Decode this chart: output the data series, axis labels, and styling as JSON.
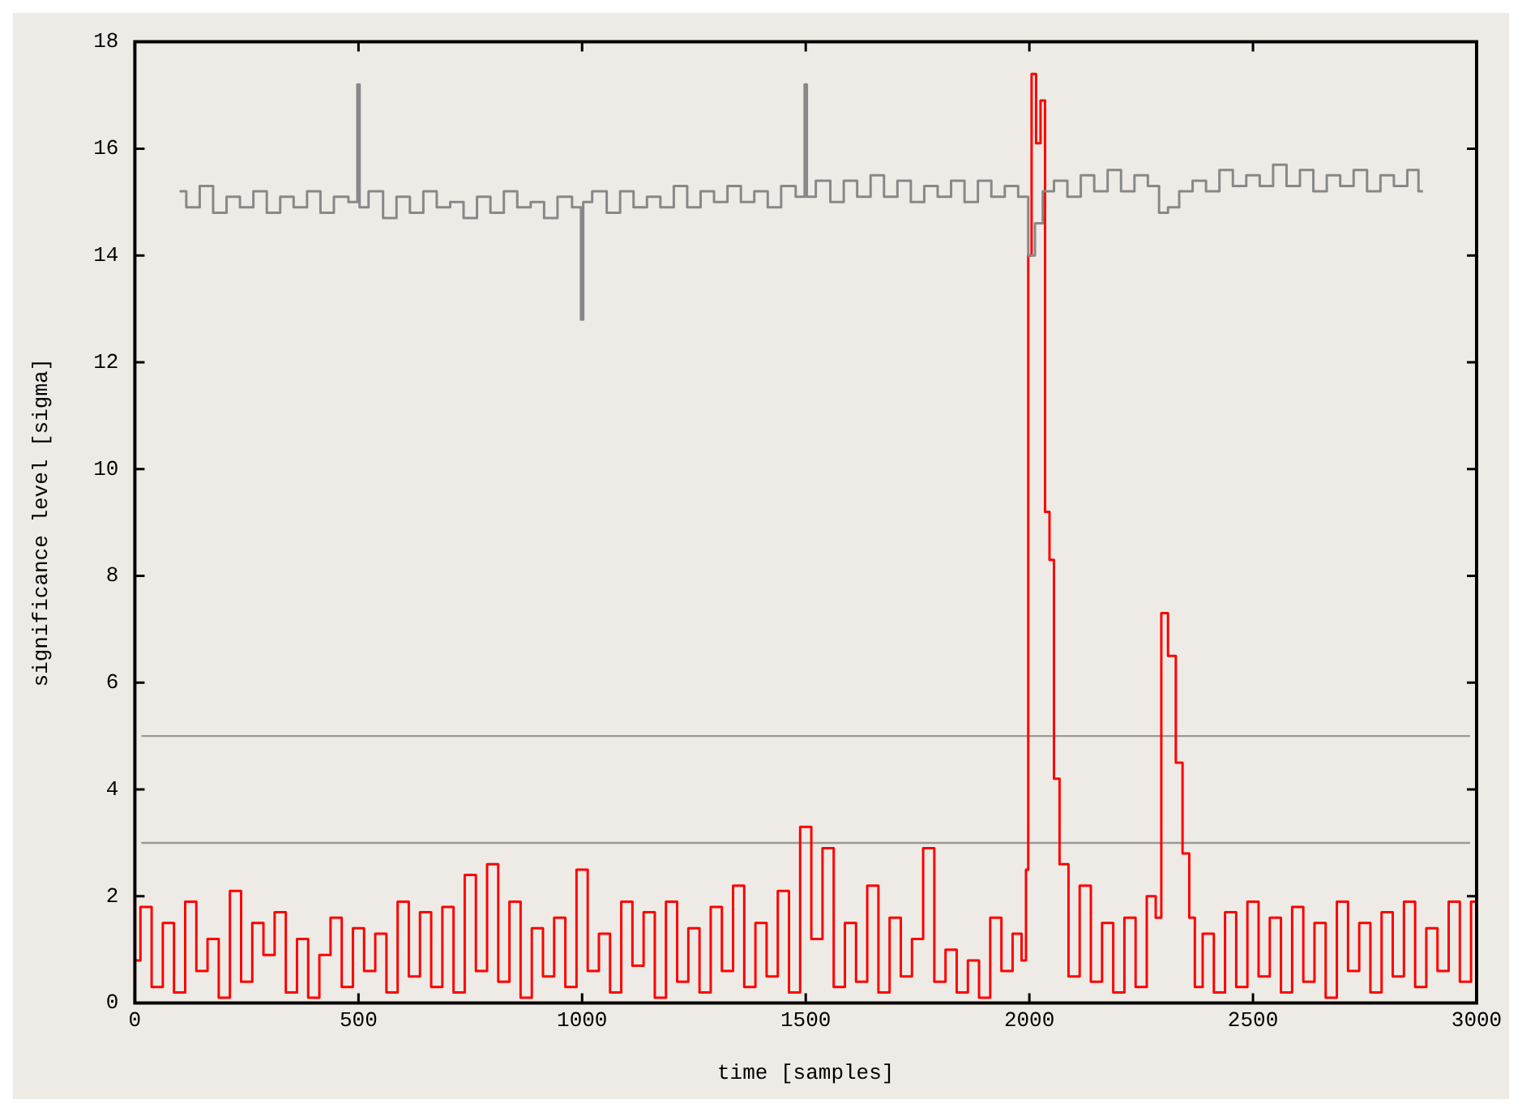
{
  "chart_data": {
    "type": "step",
    "xlabel": "time [samples]",
    "ylabel": "significance level [sigma]",
    "xlim": [
      0,
      3000
    ],
    "xticks": [
      0,
      500,
      1000,
      1500,
      2000,
      2500,
      3000
    ],
    "ylim": [
      0,
      18
    ],
    "yticks": [
      0,
      2,
      4,
      6,
      8,
      10,
      12,
      14,
      16,
      18
    ],
    "grid": false,
    "legend": false,
    "ref_lines": [
      {
        "axis": "y",
        "value": 5,
        "label": null,
        "color": "#999999"
      },
      {
        "axis": "y",
        "value": 3,
        "label": null,
        "color": "#999999"
      }
    ],
    "series": [
      {
        "color": "#888888",
        "x": [
          100,
          130,
          160,
          190,
          220,
          250,
          280,
          310,
          340,
          370,
          400,
          430,
          460,
          495,
          500,
          505,
          540,
          570,
          600,
          630,
          660,
          690,
          720,
          750,
          780,
          810,
          840,
          870,
          900,
          930,
          960,
          995,
          1000,
          1005,
          1040,
          1070,
          1100,
          1130,
          1160,
          1190,
          1220,
          1250,
          1280,
          1310,
          1340,
          1370,
          1400,
          1430,
          1460,
          1495,
          1500,
          1505,
          1540,
          1570,
          1600,
          1630,
          1660,
          1690,
          1720,
          1750,
          1780,
          1810,
          1840,
          1870,
          1900,
          1930,
          1960,
          1990,
          2005,
          2020,
          2040,
          2070,
          2100,
          2130,
          2160,
          2190,
          2220,
          2250,
          2280,
          2300,
          2320,
          2350,
          2380,
          2410,
          2440,
          2470,
          2500,
          2530,
          2560,
          2590,
          2620,
          2650,
          2680,
          2710,
          2740,
          2770,
          2800,
          2830,
          2860,
          2880
        ],
        "values": [
          15.2,
          14.9,
          15.3,
          14.8,
          15.1,
          14.9,
          15.2,
          14.8,
          15.1,
          14.9,
          15.2,
          14.8,
          15.1,
          15.0,
          17.2,
          14.9,
          15.2,
          14.7,
          15.1,
          14.8,
          15.2,
          14.9,
          15.0,
          14.7,
          15.1,
          14.8,
          15.2,
          14.9,
          15.0,
          14.7,
          15.1,
          14.9,
          12.8,
          15.0,
          15.2,
          14.8,
          15.2,
          14.9,
          15.1,
          14.9,
          15.3,
          14.9,
          15.2,
          15.0,
          15.3,
          15.0,
          15.2,
          14.9,
          15.3,
          15.1,
          17.2,
          15.1,
          15.4,
          15.0,
          15.4,
          15.1,
          15.5,
          15.1,
          15.4,
          15.0,
          15.3,
          15.1,
          15.4,
          15.0,
          15.4,
          15.1,
          15.3,
          15.1,
          14.0,
          14.6,
          15.2,
          15.4,
          15.1,
          15.5,
          15.2,
          15.6,
          15.2,
          15.5,
          15.3,
          14.8,
          14.9,
          15.2,
          15.4,
          15.2,
          15.6,
          15.3,
          15.5,
          15.3,
          15.7,
          15.3,
          15.6,
          15.2,
          15.5,
          15.3,
          15.6,
          15.2,
          15.5,
          15.3,
          15.6,
          15.2
        ]
      },
      {
        "color": "#ff0000",
        "x": [
          0,
          25,
          50,
          75,
          100,
          125,
          150,
          175,
          200,
          225,
          250,
          275,
          300,
          325,
          350,
          375,
          400,
          425,
          450,
          475,
          500,
          525,
          550,
          575,
          600,
          625,
          650,
          675,
          700,
          725,
          750,
          775,
          800,
          825,
          850,
          875,
          900,
          925,
          950,
          975,
          1000,
          1025,
          1050,
          1075,
          1100,
          1125,
          1150,
          1175,
          1200,
          1225,
          1250,
          1275,
          1300,
          1325,
          1350,
          1375,
          1400,
          1425,
          1450,
          1475,
          1500,
          1525,
          1550,
          1575,
          1600,
          1625,
          1650,
          1675,
          1700,
          1725,
          1750,
          1775,
          1800,
          1825,
          1850,
          1875,
          1900,
          1925,
          1950,
          1975,
          1990,
          1995,
          2000,
          2010,
          2020,
          2030,
          2040,
          2050,
          2060,
          2075,
          2100,
          2125,
          2150,
          2175,
          2200,
          2225,
          2250,
          2275,
          2290,
          2300,
          2320,
          2335,
          2350,
          2365,
          2375,
          2400,
          2425,
          2450,
          2475,
          2500,
          2525,
          2550,
          2575,
          2600,
          2625,
          2650,
          2675,
          2700,
          2725,
          2750,
          2775,
          2800,
          2825,
          2850,
          2875,
          2900,
          2925,
          2950,
          2975,
          3000
        ],
        "values": [
          0.8,
          1.8,
          0.3,
          1.5,
          0.2,
          1.9,
          0.6,
          1.2,
          0.1,
          2.1,
          0.4,
          1.5,
          0.9,
          1.7,
          0.2,
          1.2,
          0.1,
          0.9,
          1.6,
          0.3,
          1.4,
          0.6,
          1.3,
          0.2,
          1.9,
          0.5,
          1.7,
          0.3,
          1.8,
          0.2,
          2.4,
          0.6,
          2.6,
          0.4,
          1.9,
          0.1,
          1.4,
          0.5,
          1.6,
          0.3,
          2.5,
          0.6,
          1.3,
          0.2,
          1.9,
          0.7,
          1.7,
          0.1,
          1.9,
          0.4,
          1.4,
          0.2,
          1.8,
          0.6,
          2.2,
          0.3,
          1.5,
          0.5,
          2.1,
          0.2,
          3.3,
          1.2,
          2.9,
          0.3,
          1.5,
          0.4,
          2.2,
          0.2,
          1.6,
          0.5,
          1.2,
          2.9,
          0.4,
          1.0,
          0.2,
          0.8,
          0.1,
          1.6,
          0.6,
          1.3,
          0.8,
          2.5,
          14.0,
          17.4,
          16.1,
          16.9,
          9.2,
          8.3,
          4.2,
          2.6,
          0.5,
          2.2,
          0.4,
          1.5,
          0.2,
          1.6,
          0.3,
          2.0,
          1.6,
          7.3,
          6.5,
          4.5,
          2.8,
          1.6,
          0.3,
          1.3,
          0.2,
          1.7,
          0.3,
          1.9,
          0.5,
          1.6,
          0.2,
          1.8,
          0.4,
          1.5,
          0.1,
          1.9,
          0.6,
          1.5,
          0.2,
          1.7,
          0.5,
          1.9,
          0.3,
          1.4,
          0.6,
          1.9,
          0.4,
          1.9
        ]
      }
    ]
  }
}
